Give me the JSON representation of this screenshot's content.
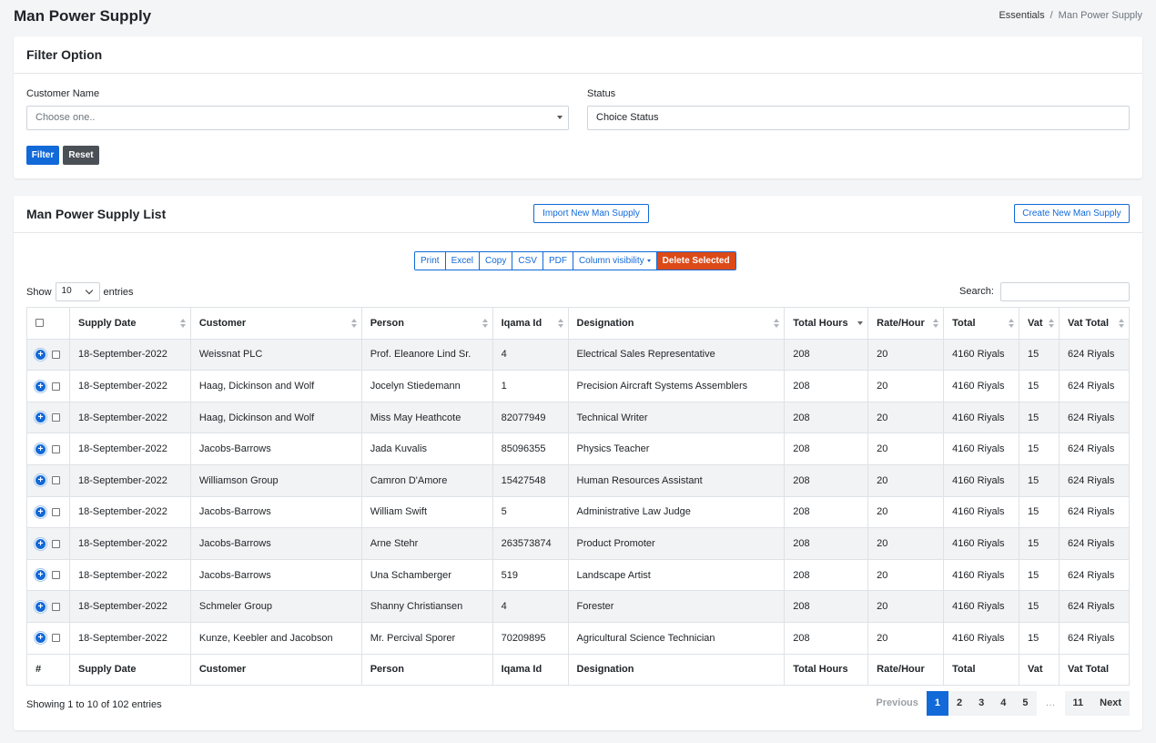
{
  "page": {
    "title": "Man Power Supply"
  },
  "breadcrumb": {
    "parent": "Essentials",
    "separator": "/",
    "current": "Man Power Supply"
  },
  "filter": {
    "title": "Filter Option",
    "customer_label": "Customer Name",
    "customer_placeholder": "Choose one..",
    "status_label": "Status",
    "status_value": "Choice Status",
    "filter_button": "Filter",
    "reset_button": "Reset"
  },
  "list": {
    "title": "Man Power Supply List",
    "import_button": "Import New Man Supply",
    "create_button": "Create New Man Supply",
    "export_buttons": [
      "Print",
      "Excel",
      "Copy",
      "CSV",
      "PDF",
      "Column visibility"
    ],
    "delete_button": "Delete Selected",
    "show_label": "Show",
    "page_length": "10",
    "entries_label": "entries",
    "search_label": "Search:",
    "columns": [
      "Supply Date",
      "Customer",
      "Person",
      "Iqama Id",
      "Designation",
      "Total Hours",
      "Rate/Hour",
      "Total",
      "Vat",
      "Vat Total"
    ],
    "footer_columns": [
      "#",
      "Supply Date",
      "Customer",
      "Person",
      "Iqama Id",
      "Designation",
      "Total Hours",
      "Rate/Hour",
      "Total",
      "Vat",
      "Vat Total"
    ],
    "rows": [
      [
        "18-September-2022",
        "Weissnat PLC",
        "Prof. Eleanore Lind Sr.",
        "4",
        "Electrical Sales Representative",
        "208",
        "20",
        "4160 Riyals",
        "15",
        "624 Riyals"
      ],
      [
        "18-September-2022",
        "Haag, Dickinson and Wolf",
        "Jocelyn Stiedemann",
        "1",
        "Precision Aircraft Systems Assemblers",
        "208",
        "20",
        "4160 Riyals",
        "15",
        "624 Riyals"
      ],
      [
        "18-September-2022",
        "Haag, Dickinson and Wolf",
        "Miss May Heathcote",
        "82077949",
        "Technical Writer",
        "208",
        "20",
        "4160 Riyals",
        "15",
        "624 Riyals"
      ],
      [
        "18-September-2022",
        "Jacobs-Barrows",
        "Jada Kuvalis",
        "85096355",
        "Physics Teacher",
        "208",
        "20",
        "4160 Riyals",
        "15",
        "624 Riyals"
      ],
      [
        "18-September-2022",
        "Williamson Group",
        "Camron D'Amore",
        "15427548",
        "Human Resources Assistant",
        "208",
        "20",
        "4160 Riyals",
        "15",
        "624 Riyals"
      ],
      [
        "18-September-2022",
        "Jacobs-Barrows",
        "William Swift",
        "5",
        "Administrative Law Judge",
        "208",
        "20",
        "4160 Riyals",
        "15",
        "624 Riyals"
      ],
      [
        "18-September-2022",
        "Jacobs-Barrows",
        "Arne Stehr",
        "263573874",
        "Product Promoter",
        "208",
        "20",
        "4160 Riyals",
        "15",
        "624 Riyals"
      ],
      [
        "18-September-2022",
        "Jacobs-Barrows",
        "Una Schamberger",
        "519",
        "Landscape Artist",
        "208",
        "20",
        "4160 Riyals",
        "15",
        "624 Riyals"
      ],
      [
        "18-September-2022",
        "Schmeler Group",
        "Shanny Christiansen",
        "4",
        "Forester",
        "208",
        "20",
        "4160 Riyals",
        "15",
        "624 Riyals"
      ],
      [
        "18-September-2022",
        "Kunze, Keebler and Jacobson",
        "Mr. Percival Sporer",
        "70209895",
        "Agricultural Science Technician",
        "208",
        "20",
        "4160 Riyals",
        "15",
        "624 Riyals"
      ]
    ],
    "info": "Showing 1 to 10 of 102 entries",
    "pagination": {
      "previous": "Previous",
      "pages": [
        "1",
        "2",
        "3",
        "4",
        "5"
      ],
      "ellipsis": "…",
      "last": "11",
      "next": "Next",
      "active": "1"
    }
  },
  "colors": {
    "primary": "#1269d8",
    "danger": "#dc4a18",
    "dark": "#4b5056"
  }
}
